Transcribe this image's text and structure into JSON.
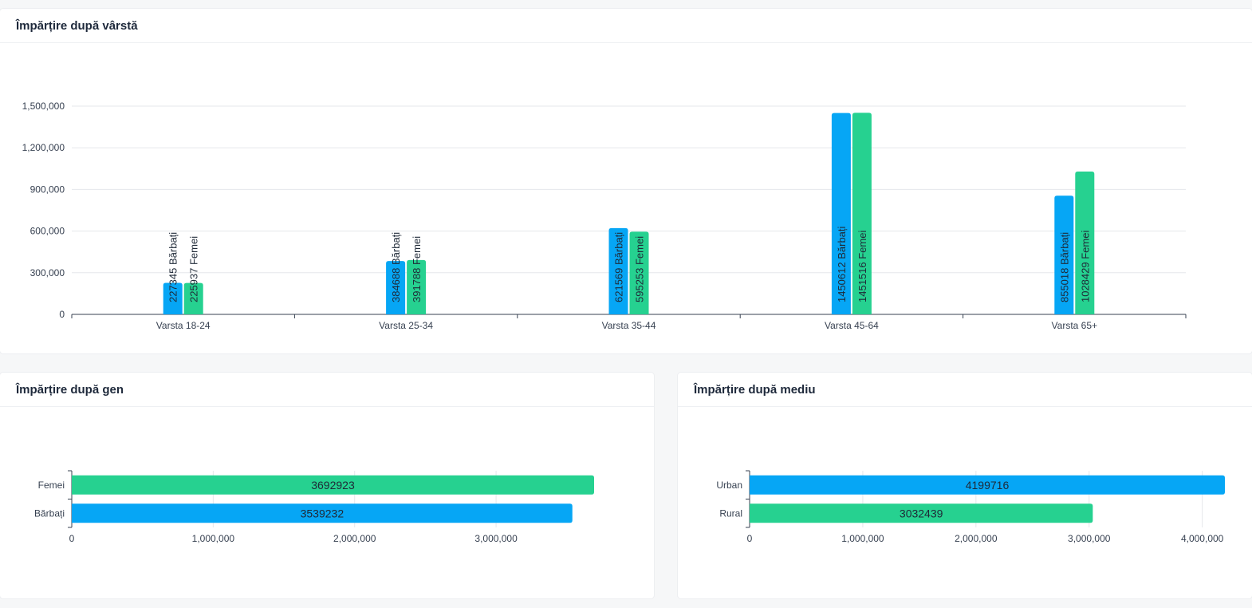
{
  "colors": {
    "men": "#06a6f5",
    "women": "#26d190",
    "urban": "#06a6f5",
    "rural": "#26d190"
  },
  "chart_data": [
    {
      "id": "age",
      "type": "bar",
      "title": "Împărțire după vârstă",
      "categories": [
        "Varsta 18-24",
        "Varsta 25-34",
        "Varsta 35-44",
        "Varsta 45-64",
        "Varsta 65+"
      ],
      "series": [
        {
          "key": "men",
          "values": [
            227345,
            384688,
            621569,
            1450612,
            855018
          ],
          "labels": [
            "227345 Bărbați",
            "384688 Bărbați",
            "621569 Bărbați",
            "1450612 Bărbați",
            "855018 Bărbați"
          ]
        },
        {
          "key": "women",
          "values": [
            225937,
            391788,
            595253,
            1451516,
            1028429
          ],
          "labels": [
            "225937 Femei",
            "391788 Femei",
            "595253 Femei",
            "1451516 Femei",
            "1028429 Femei"
          ]
        }
      ],
      "yticks": [
        0,
        300000,
        600000,
        900000,
        1200000,
        1500000
      ],
      "ytick_labels": [
        "0",
        "300,000",
        "600,000",
        "900,000",
        "1,200,000",
        "1,500,000"
      ],
      "ylim": [
        0,
        1500000
      ],
      "grid": true
    },
    {
      "id": "gender",
      "type": "bar",
      "orientation": "horizontal",
      "title": "Împărțire după gen",
      "categories": [
        "Femei",
        "Bărbați"
      ],
      "values": [
        3692923,
        3539232
      ],
      "value_labels": [
        "3692923",
        "3539232"
      ],
      "color_keys": [
        "women",
        "men"
      ],
      "xticks": [
        0,
        1000000,
        2000000,
        3000000
      ],
      "xtick_labels": [
        "0",
        "1,000,000",
        "2,000,000",
        "3,000,000"
      ],
      "xlim": [
        0,
        3692923
      ],
      "grid": true
    },
    {
      "id": "env",
      "type": "bar",
      "orientation": "horizontal",
      "title": "Împărțire după mediu",
      "categories": [
        "Urban",
        "Rural"
      ],
      "values": [
        4199716,
        3032439
      ],
      "value_labels": [
        "4199716",
        "3032439"
      ],
      "color_keys": [
        "urban",
        "rural"
      ],
      "xticks": [
        0,
        1000000,
        2000000,
        3000000,
        4000000
      ],
      "xtick_labels": [
        "0",
        "1,000,000",
        "2,000,000",
        "3,000,000",
        "4,000,000"
      ],
      "xlim": [
        0,
        4199716
      ],
      "grid": true
    }
  ]
}
